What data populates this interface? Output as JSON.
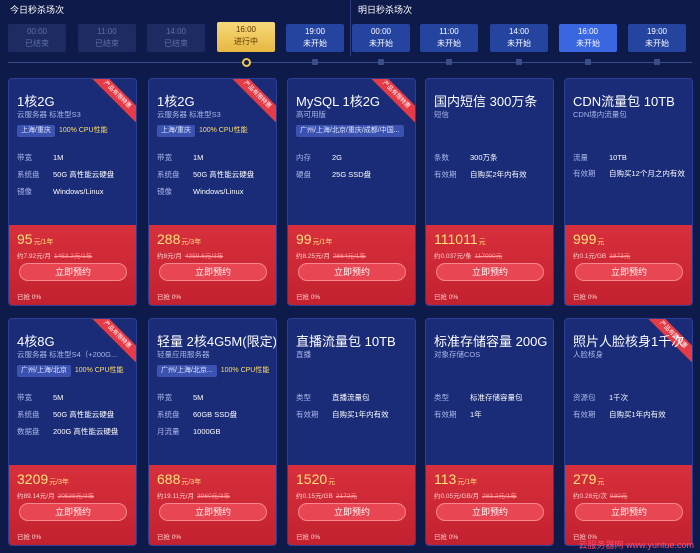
{
  "header": {
    "today_label": "今日秒杀场次",
    "tomorrow_label": "明日秒杀场次",
    "slots": [
      {
        "time": "00:00",
        "status": "已结束",
        "state": "ended"
      },
      {
        "time": "11:00",
        "status": "已结束",
        "state": "ended"
      },
      {
        "time": "14:00",
        "status": "已结束",
        "state": "ended"
      },
      {
        "time": "16:00",
        "status": "进行中",
        "state": "active"
      },
      {
        "time": "19:00",
        "status": "未开始",
        "state": "upcoming"
      },
      {
        "time": "00:00",
        "status": "未开始",
        "state": "upcoming"
      },
      {
        "time": "11:00",
        "status": "未开始",
        "state": "upcoming"
      },
      {
        "time": "14:00",
        "status": "未开始",
        "state": "upcoming"
      },
      {
        "time": "16:00",
        "status": "未开始",
        "state": "upcoming-hl"
      },
      {
        "time": "19:00",
        "status": "未开始",
        "state": "upcoming"
      }
    ]
  },
  "ribbon_text": "产品有限特惠",
  "cards": [
    {
      "title": "1核2G",
      "subtitle": "云服务器 标准型S3",
      "tag": "上海/重庆",
      "tagtext": "100% CPU性能",
      "ribbon": true,
      "specs": [
        {
          "k": "带宽",
          "v": "1M"
        },
        {
          "k": "系统盘",
          "v": "50G 高性能云硬盘"
        },
        {
          "k": "镜像",
          "v": "Windows/Linux"
        }
      ],
      "price": "95",
      "unit": "元/1年",
      "per": "约7.92元/月",
      "orig": "1453.2元/1年",
      "button": "立即预约",
      "sold": "已抢 0%"
    },
    {
      "title": "1核2G",
      "subtitle": "云服务器 标准型S3",
      "tag": "上海/重庆",
      "tagtext": "100% CPU性能",
      "ribbon": true,
      "specs": [
        {
          "k": "带宽",
          "v": "1M"
        },
        {
          "k": "系统盘",
          "v": "50G 高性能云硬盘"
        },
        {
          "k": "镜像",
          "v": "Windows/Linux"
        }
      ],
      "price": "288",
      "unit": "元/3年",
      "per": "约8元/月",
      "orig": "4359.6元/3年",
      "button": "立即预约",
      "sold": "已抢 0%"
    },
    {
      "title": "MySQL 1核2G",
      "subtitle": "高可用版",
      "tag": "广州/上海/北京/重庆/成都/中国...",
      "tagtext": "",
      "ribbon": true,
      "specs": [
        {
          "k": "内存",
          "v": "2G"
        },
        {
          "k": "硬盘",
          "v": "25G SSD盘"
        }
      ],
      "price": "99",
      "unit": "元/1年",
      "per": "约8.25元/月",
      "orig": "2664元/1年",
      "button": "立即预约",
      "sold": "已抢 0%"
    },
    {
      "title": "国内短信 300万条",
      "subtitle": "短信",
      "tag": "",
      "tagtext": "",
      "ribbon": false,
      "specs": [
        {
          "k": "条数",
          "v": "300万条"
        },
        {
          "k": "有效期",
          "v": "自购买2年内有效"
        }
      ],
      "price": "111011",
      "unit": "元",
      "per": "约0.037元/条",
      "orig": "117000元",
      "button": "立即预约",
      "sold": "已抢 0%"
    },
    {
      "title": "CDN流量包 10TB",
      "subtitle": "CDN境内流量包",
      "tag": "",
      "tagtext": "",
      "ribbon": false,
      "specs": [
        {
          "k": "流量",
          "v": "10TB"
        },
        {
          "k": "有效期",
          "v": "自购买12个月之内有效",
          "wrap": true
        }
      ],
      "price": "999",
      "unit": "元",
      "per": "约0.1元/GB",
      "orig": "1873元",
      "button": "立即预约",
      "sold": "已抢 0%"
    },
    {
      "title": "4核8G",
      "subtitle": "云服务器 标准型S4（+200G...",
      "tag": "广州/上海/北京",
      "tagtext": "100% CPU性能",
      "ribbon": true,
      "specs": [
        {
          "k": "带宽",
          "v": "5M"
        },
        {
          "k": "系统盘",
          "v": "50G 高性能云硬盘"
        },
        {
          "k": "数据盘",
          "v": "200G 高性能云硬盘"
        }
      ],
      "price": "3209",
      "unit": "元/3年",
      "per": "约89.14元/月",
      "orig": "20538元/3年",
      "button": "立即预约",
      "sold": "已抢 0%"
    },
    {
      "title": "轻量 2核4G5M(限定)",
      "subtitle": "轻量应用服务器",
      "tag": "广州/上海/北京...",
      "tagtext": "100% CPU性能",
      "ribbon": false,
      "specs": [
        {
          "k": "带宽",
          "v": "5M"
        },
        {
          "k": "系统盘",
          "v": "60GB SSD盘"
        },
        {
          "k": "月流量",
          "v": "1000GB"
        }
      ],
      "price": "688",
      "unit": "元/3年",
      "per": "约19.11元/月",
      "orig": "3960元/3年",
      "button": "立即预约",
      "sold": "已抢 0%"
    },
    {
      "title": "直播流量包 10TB",
      "subtitle": "直播",
      "tag": "",
      "tagtext": "",
      "ribbon": false,
      "specs": [
        {
          "k": "类型",
          "v": "直播流量包"
        },
        {
          "k": "有效期",
          "v": "自购买1年内有效"
        }
      ],
      "price": "1520",
      "unit": "元",
      "per": "约0.15元/GB",
      "orig": "2172元",
      "button": "立即预约",
      "sold": "已抢 0%"
    },
    {
      "title": "标准存储容量 200G",
      "subtitle": "对象存储COS",
      "tag": "",
      "tagtext": "",
      "ribbon": false,
      "specs": [
        {
          "k": "类型",
          "v": "标准存储容量包"
        },
        {
          "k": "有效期",
          "v": "1年"
        }
      ],
      "price": "113",
      "unit": "元/1年",
      "per": "约0.05元/GB/月",
      "orig": "283.2元/1年",
      "button": "立即预约",
      "sold": "已抢 0%"
    },
    {
      "title": "照片人脸核身1千次",
      "subtitle": "人脸核身",
      "tag": "",
      "tagtext": "",
      "ribbon": true,
      "specs": [
        {
          "k": "资源包",
          "v": "1千次"
        },
        {
          "k": "有效期",
          "v": "自购买1年内有效"
        }
      ],
      "price": "279",
      "unit": "元",
      "per": "约0.28元/次",
      "orig": "930元",
      "button": "立即预约",
      "sold": "已抢 0%"
    }
  ],
  "watermark": "云服务器网 www.yuntue.com"
}
